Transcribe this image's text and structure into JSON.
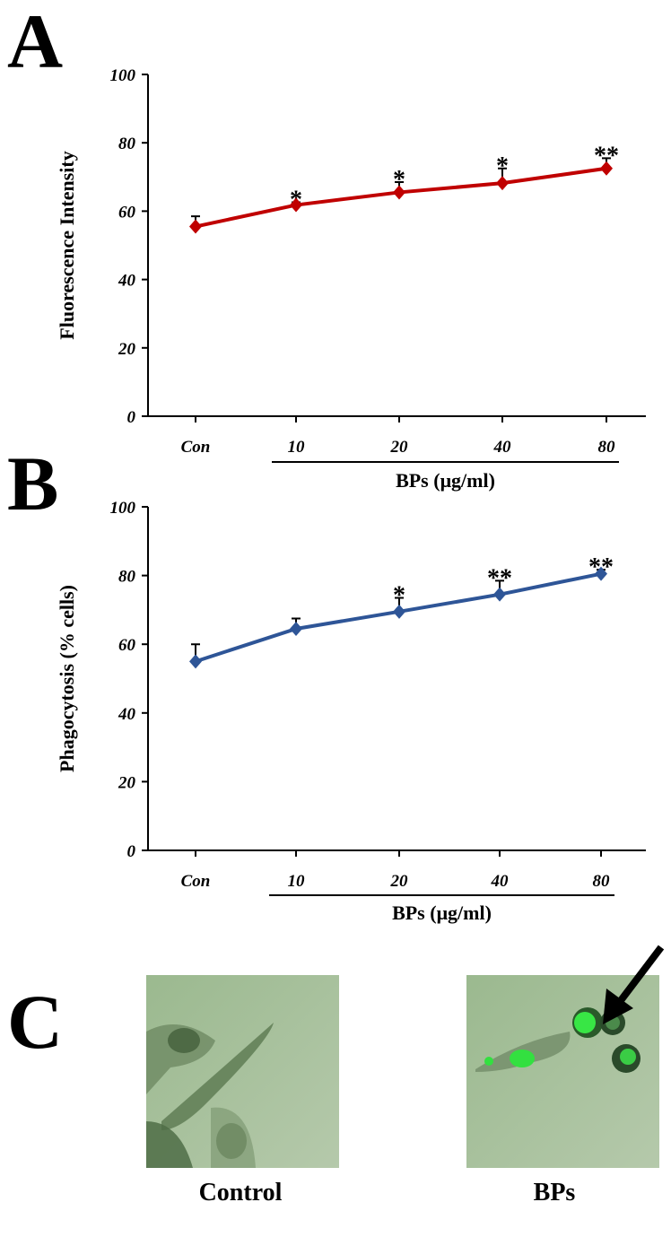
{
  "chart_data": [
    {
      "type": "line",
      "panel_label": "A",
      "y_label": "Fluorescence Intensity",
      "categories": [
        "Con",
        "10",
        "20",
        "40",
        "80"
      ],
      "x_group_label": "BPs (μg/ml)",
      "values": [
        55.5,
        61.8,
        65.5,
        68.2,
        72.5
      ],
      "errors": [
        3,
        0.8,
        3,
        4.3,
        3
      ],
      "annotations": [
        null,
        "*",
        "*",
        "*",
        "**"
      ],
      "color": "#c00000",
      "ylim": [
        0,
        100
      ],
      "yticks": [
        0,
        20,
        40,
        60,
        80,
        100
      ]
    },
    {
      "type": "line",
      "panel_label": "B",
      "y_label": "Phagocytosis (% cells)",
      "categories": [
        "Con",
        "10",
        "20",
        "40",
        "80"
      ],
      "x_group_label": "BPs (μg/ml)",
      "values": [
        55,
        64.5,
        69.5,
        74.5,
        80.5
      ],
      "errors": [
        5,
        3,
        4,
        4,
        1.2
      ],
      "annotations": [
        null,
        null,
        "*",
        "**",
        "**"
      ],
      "color": "#2e5597",
      "ylim": [
        0,
        100
      ],
      "yticks": [
        0,
        20,
        40,
        60,
        80,
        100
      ]
    }
  ],
  "panel_c": {
    "label": "C",
    "images": [
      {
        "caption": "Control"
      },
      {
        "caption": "BPs"
      }
    ]
  }
}
